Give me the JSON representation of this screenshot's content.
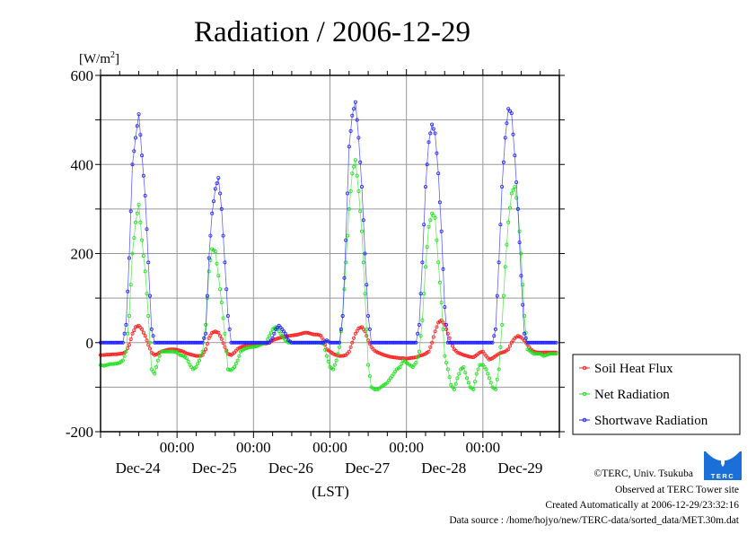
{
  "chart_data": {
    "type": "line",
    "title": "Radiation / 2006-12-29",
    "ylabel": "[W/m2]",
    "ylabel_base": "[W/m",
    "ylabel_sup": "2",
    "ylabel_close": "]",
    "xlabel": "(LST)",
    "ylim": [
      -200,
      600
    ],
    "yticks": [
      600,
      400,
      200,
      0,
      -200
    ],
    "yticks_labels": [
      "600",
      "400",
      "200",
      "0",
      "-200"
    ],
    "x_range_hours": [
      0,
      144
    ],
    "x_start": "Dec-24 00:00",
    "x_step_hours": 1,
    "xtick_time_labels": [
      "00:00",
      "00:00",
      "00:00",
      "00:00",
      "00:00"
    ],
    "xtick_date_labels": [
      "Dec-24",
      "Dec-25",
      "Dec-26",
      "Dec-27",
      "Dec-28",
      "Dec-29"
    ],
    "grid": true,
    "legend_position": "right",
    "series": [
      {
        "name": "Soil Heat Flux",
        "color": "#ff2020",
        "values": [
          -28,
          -28,
          -27,
          -27,
          -26,
          -26,
          -25,
          -24,
          -20,
          -5,
          20,
          35,
          38,
          30,
          15,
          -5,
          -22,
          -28,
          -25,
          -20,
          -18,
          -16,
          -15,
          -15,
          -16,
          -18,
          -20,
          -24,
          -26,
          -28,
          -30,
          -30,
          -28,
          -15,
          10,
          22,
          25,
          22,
          8,
          -10,
          -25,
          -28,
          -22,
          -14,
          -10,
          -8,
          -6,
          -5,
          -5,
          -4,
          -3,
          -2,
          -2,
          0,
          5,
          8,
          10,
          12,
          14,
          15,
          16,
          17,
          18,
          20,
          22,
          22,
          20,
          18,
          18,
          16,
          5,
          -15,
          -20,
          -25,
          -28,
          -30,
          -30,
          -28,
          -20,
          0,
          20,
          32,
          35,
          25,
          5,
          -10,
          -18,
          -22,
          -25,
          -28,
          -30,
          -32,
          -33,
          -34,
          -35,
          -35,
          -36,
          -35,
          -34,
          -33,
          -30,
          -28,
          -25,
          -20,
          0,
          25,
          45,
          50,
          40,
          20,
          0,
          -15,
          -22,
          -25,
          -28,
          -30,
          -32,
          -33,
          -28,
          -22,
          -20,
          -30,
          -38,
          -35,
          -30,
          -25,
          -22,
          -20,
          -15,
          0,
          10,
          15,
          12,
          5,
          -5,
          -15,
          -20,
          -22,
          -22,
          -22,
          -22,
          -22,
          -22,
          -22
        ],
        "line_values_note": ""
      },
      {
        "name": "Net Radiation",
        "color": "#20e020",
        "values": [
          -50,
          -52,
          -50,
          -48,
          -48,
          -47,
          -45,
          -40,
          -20,
          60,
          200,
          270,
          310,
          230,
          160,
          60,
          -60,
          -70,
          -40,
          -20,
          -20,
          -20,
          -20,
          -20,
          -22,
          -28,
          -30,
          -35,
          -50,
          -60,
          -55,
          -40,
          -20,
          40,
          160,
          210,
          205,
          150,
          90,
          20,
          -60,
          -62,
          -55,
          -40,
          -20,
          -15,
          -12,
          -10,
          -10,
          -8,
          -5,
          -2,
          0,
          15,
          30,
          35,
          25,
          15,
          5,
          0,
          0,
          0,
          0,
          0,
          0,
          0,
          0,
          0,
          0,
          0,
          -3,
          -30,
          -55,
          -60,
          -40,
          -10,
          60,
          180,
          300,
          380,
          410,
          340,
          250,
          110,
          -50,
          -100,
          -105,
          -105,
          -100,
          -95,
          -90,
          -80,
          -70,
          -60,
          -55,
          -40,
          -45,
          -50,
          -55,
          -45,
          -20,
          50,
          170,
          260,
          290,
          280,
          180,
          90,
          -30,
          -60,
          -95,
          -105,
          -80,
          -60,
          -55,
          -80,
          -100,
          -105,
          -70,
          -50,
          -50,
          -60,
          -80,
          -100,
          -105,
          -60,
          40,
          170,
          270,
          335,
          350,
          300,
          200,
          60,
          -15,
          -20,
          -25,
          -25,
          -25,
          -30,
          -28,
          -25,
          -25,
          -25
        ]
      },
      {
        "name": "Shortwave Radiation",
        "color": "#2020ff",
        "values": [
          0,
          0,
          0,
          0,
          0,
          0,
          0,
          0,
          40,
          190,
          400,
          460,
          513,
          420,
          330,
          180,
          30,
          0,
          0,
          0,
          0,
          0,
          0,
          0,
          0,
          0,
          0,
          0,
          0,
          0,
          0,
          0,
          0,
          20,
          190,
          290,
          345,
          370,
          300,
          180,
          60,
          0,
          0,
          0,
          0,
          0,
          0,
          0,
          0,
          0,
          0,
          0,
          0,
          0,
          10,
          30,
          38,
          30,
          20,
          5,
          0,
          0,
          0,
          0,
          0,
          0,
          0,
          0,
          0,
          0,
          0,
          5,
          0,
          0,
          0,
          0,
          60,
          230,
          440,
          510,
          540,
          460,
          350,
          200,
          60,
          0,
          0,
          0,
          0,
          0,
          0,
          0,
          0,
          0,
          0,
          0,
          0,
          0,
          0,
          0,
          40,
          180,
          350,
          450,
          490,
          470,
          380,
          250,
          80,
          0,
          0,
          0,
          0,
          0,
          0,
          0,
          0,
          0,
          0,
          0,
          0,
          0,
          0,
          0,
          30,
          180,
          350,
          460,
          525,
          515,
          420,
          300,
          150,
          20,
          0,
          0,
          0,
          0,
          0,
          0,
          0,
          0,
          0,
          0
        ]
      }
    ]
  },
  "footer": {
    "copyright": "©TERC, Univ. Tsukuba",
    "observed": "Observed at TERC Tower site",
    "created": "Created Automatically at 2006-12-29/23:32:16",
    "source": "Data source : /home/hojyo/new/TERC-data/sorted_data/MET.30m.dat",
    "logo_text": "TERC"
  }
}
